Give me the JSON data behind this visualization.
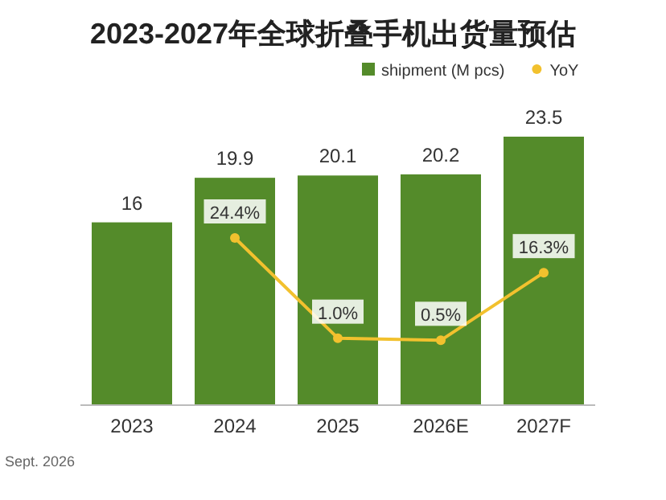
{
  "chart_data": {
    "type": "bar",
    "title": "2023-2027年全球折叠手机出货量预估",
    "categories": [
      "2023",
      "2024",
      "2025",
      "2026E",
      "2027F"
    ],
    "legend": "top right",
    "data_labels": true,
    "series": [
      {
        "name": "shipment (M pcs)",
        "color": "#548b2a",
        "values": [
          16,
          19.9,
          20.1,
          20.2,
          23.5
        ]
      },
      {
        "name": "YoY",
        "type": "line",
        "axis": "y2",
        "color": "#f2c12e",
        "marker": "circle",
        "values": [
          null,
          24.4,
          1.0,
          0.5,
          16.3
        ],
        "value_labels": [
          null,
          "24.4%",
          "1.0%",
          "0.5%",
          "16.3%"
        ]
      }
    ],
    "annotations": [
      "Sept. 2026"
    ]
  }
}
